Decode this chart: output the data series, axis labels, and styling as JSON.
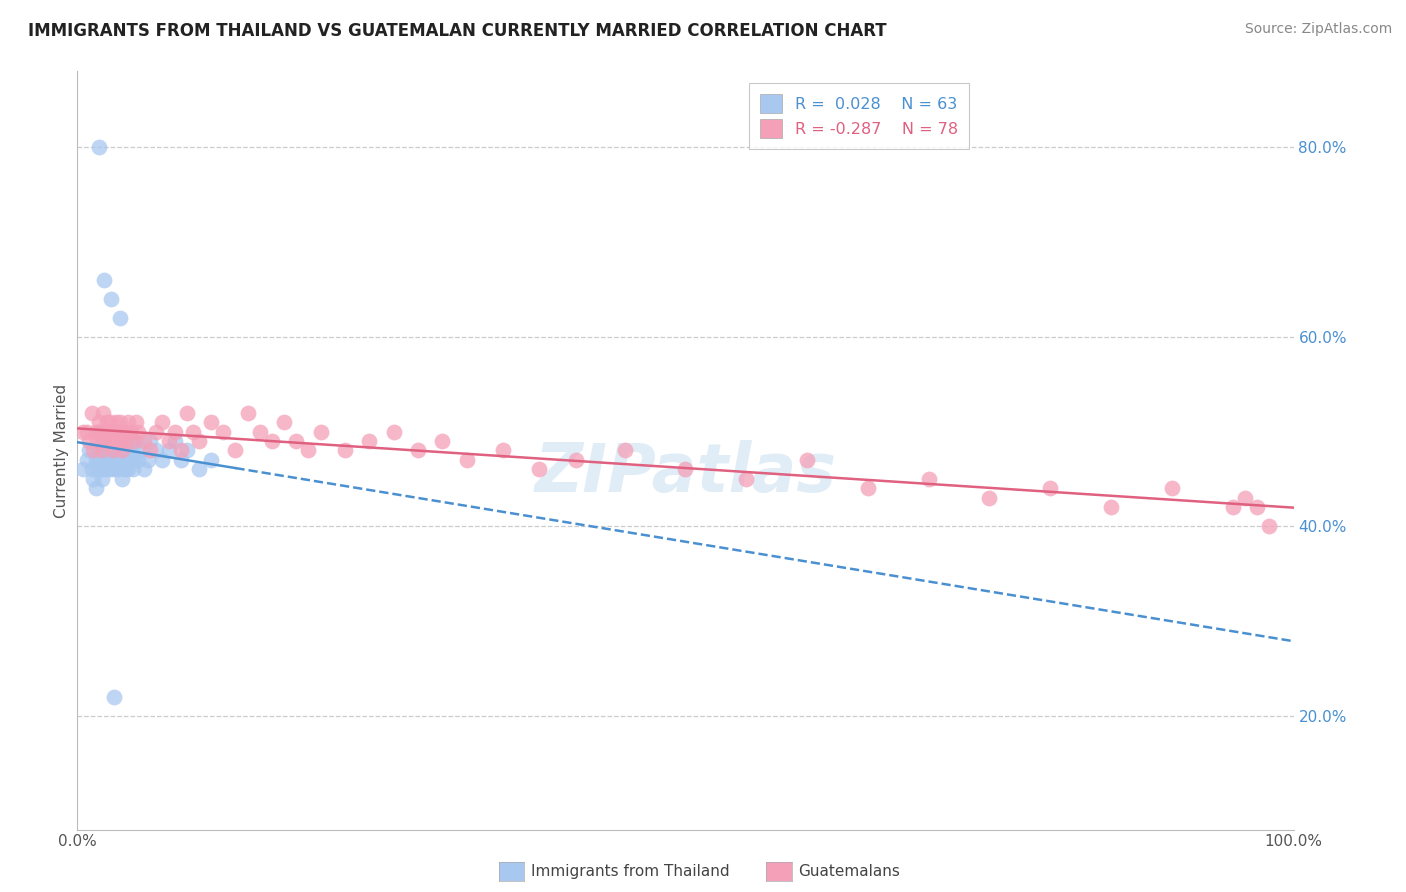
{
  "title": "IMMIGRANTS FROM THAILAND VS GUATEMALAN CURRENTLY MARRIED CORRELATION CHART",
  "source": "Source: ZipAtlas.com",
  "ylabel": "Currently Married",
  "legend_labels": [
    "Immigrants from Thailand",
    "Guatemalans"
  ],
  "xlim": [
    0.0,
    1.0
  ],
  "ylim": [
    0.08,
    0.88
  ],
  "y_ticks": [
    0.2,
    0.4,
    0.6,
    0.8
  ],
  "color_thailand": "#a8c8f0",
  "color_guatemala": "#f4a0b8",
  "trendline_thailand_color": "#4a90d0",
  "trendline_guatemala_color": "#e06080",
  "background_color": "#ffffff",
  "grid_color": "#cccccc",
  "watermark": "ZIPatlas",
  "thailand_x": [
    0.005,
    0.008,
    0.01,
    0.012,
    0.013,
    0.015,
    0.015,
    0.016,
    0.017,
    0.018,
    0.018,
    0.019,
    0.02,
    0.02,
    0.021,
    0.022,
    0.022,
    0.023,
    0.024,
    0.025,
    0.025,
    0.026,
    0.027,
    0.028,
    0.028,
    0.029,
    0.03,
    0.031,
    0.032,
    0.033,
    0.034,
    0.035,
    0.036,
    0.037,
    0.038,
    0.039,
    0.04,
    0.041,
    0.042,
    0.043,
    0.044,
    0.045,
    0.046,
    0.047,
    0.048,
    0.05,
    0.052,
    0.055,
    0.058,
    0.06,
    0.065,
    0.07,
    0.075,
    0.08,
    0.085,
    0.09,
    0.1,
    0.11,
    0.03,
    0.018,
    0.022,
    0.028,
    0.035
  ],
  "thailand_y": [
    0.46,
    0.47,
    0.48,
    0.46,
    0.45,
    0.44,
    0.47,
    0.46,
    0.48,
    0.47,
    0.5,
    0.46,
    0.48,
    0.45,
    0.49,
    0.47,
    0.46,
    0.48,
    0.47,
    0.5,
    0.46,
    0.48,
    0.47,
    0.46,
    0.49,
    0.47,
    0.48,
    0.46,
    0.47,
    0.49,
    0.46,
    0.48,
    0.47,
    0.45,
    0.47,
    0.46,
    0.48,
    0.47,
    0.46,
    0.49,
    0.47,
    0.48,
    0.46,
    0.47,
    0.49,
    0.47,
    0.48,
    0.46,
    0.47,
    0.49,
    0.48,
    0.47,
    0.48,
    0.49,
    0.47,
    0.48,
    0.46,
    0.47,
    0.22,
    0.8,
    0.66,
    0.64,
    0.62
  ],
  "guatemala_x": [
    0.005,
    0.008,
    0.01,
    0.012,
    0.013,
    0.015,
    0.016,
    0.018,
    0.019,
    0.02,
    0.021,
    0.022,
    0.023,
    0.024,
    0.025,
    0.026,
    0.027,
    0.028,
    0.029,
    0.03,
    0.031,
    0.032,
    0.033,
    0.034,
    0.035,
    0.036,
    0.037,
    0.038,
    0.04,
    0.042,
    0.044,
    0.046,
    0.048,
    0.05,
    0.055,
    0.06,
    0.065,
    0.07,
    0.075,
    0.08,
    0.085,
    0.09,
    0.095,
    0.1,
    0.11,
    0.12,
    0.13,
    0.14,
    0.15,
    0.16,
    0.17,
    0.18,
    0.19,
    0.2,
    0.22,
    0.24,
    0.26,
    0.28,
    0.3,
    0.32,
    0.35,
    0.38,
    0.41,
    0.45,
    0.5,
    0.55,
    0.6,
    0.65,
    0.7,
    0.75,
    0.8,
    0.85,
    0.9,
    0.95,
    0.96,
    0.97,
    0.98
  ],
  "guatemala_y": [
    0.5,
    0.5,
    0.49,
    0.52,
    0.48,
    0.5,
    0.49,
    0.51,
    0.5,
    0.48,
    0.52,
    0.5,
    0.49,
    0.51,
    0.5,
    0.49,
    0.51,
    0.5,
    0.48,
    0.5,
    0.49,
    0.51,
    0.5,
    0.49,
    0.51,
    0.5,
    0.48,
    0.5,
    0.49,
    0.51,
    0.5,
    0.49,
    0.51,
    0.5,
    0.49,
    0.48,
    0.5,
    0.51,
    0.49,
    0.5,
    0.48,
    0.52,
    0.5,
    0.49,
    0.51,
    0.5,
    0.48,
    0.52,
    0.5,
    0.49,
    0.51,
    0.49,
    0.48,
    0.5,
    0.48,
    0.49,
    0.5,
    0.48,
    0.49,
    0.47,
    0.48,
    0.46,
    0.47,
    0.48,
    0.46,
    0.45,
    0.47,
    0.44,
    0.45,
    0.43,
    0.44,
    0.42,
    0.44,
    0.42,
    0.43,
    0.42,
    0.4
  ]
}
